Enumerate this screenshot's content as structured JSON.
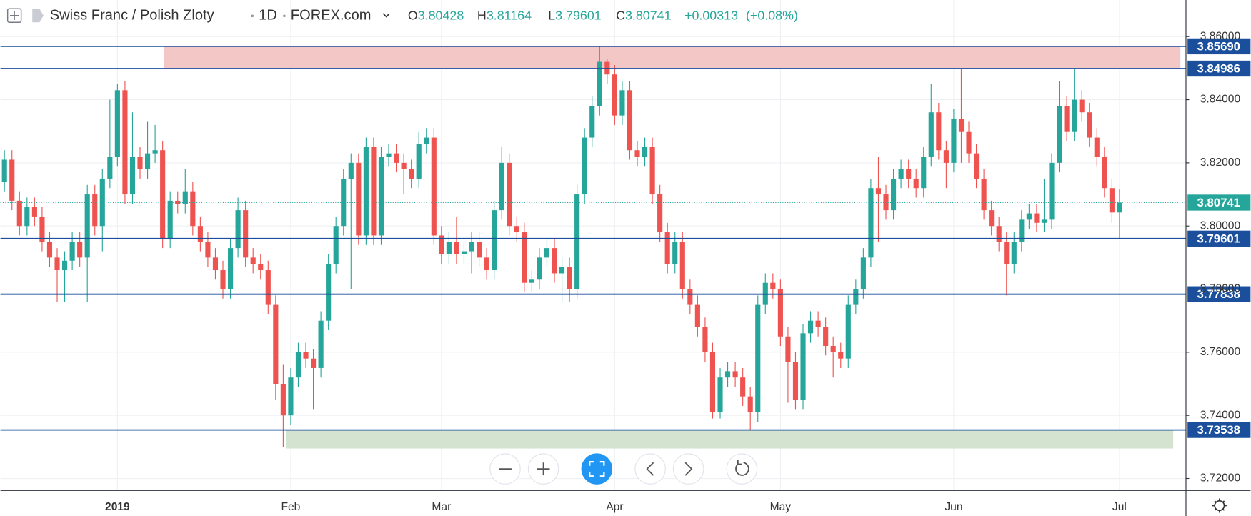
{
  "chart_data": {
    "type": "candlestick",
    "header": {
      "symbol": "Swiss Franc / Polish Zloty",
      "interval": "1D",
      "source": "FOREX.com",
      "o_label": "O",
      "h_label": "H",
      "l_label": "L",
      "c_label": "C",
      "change": {
        "value": 0.00313,
        "label": "+0.00313"
      },
      "change_pct": {
        "value": 0.08,
        "label": "(+0.08%)"
      }
    },
    "up_color": "#26a69a",
    "down_color": "#ef5350",
    "categories": [
      null,
      null,
      null,
      null,
      null,
      null,
      null,
      null,
      null,
      null,
      null,
      null,
      null,
      null,
      null,
      "2019",
      null,
      null,
      null,
      null,
      null,
      null,
      null,
      null,
      null,
      null,
      null,
      null,
      null,
      null,
      null,
      null,
      null,
      null,
      null,
      null,
      null,
      null,
      "Feb",
      null,
      null,
      null,
      null,
      null,
      null,
      null,
      null,
      null,
      null,
      null,
      null,
      null,
      null,
      null,
      null,
      null,
      null,
      null,
      "Mar",
      null,
      null,
      null,
      null,
      null,
      null,
      null,
      null,
      null,
      null,
      null,
      null,
      null,
      null,
      null,
      null,
      null,
      null,
      null,
      null,
      null,
      null,
      "Apr",
      null,
      null,
      null,
      null,
      null,
      null,
      null,
      null,
      null,
      null,
      null,
      null,
      null,
      null,
      null,
      null,
      null,
      null,
      null,
      null,
      null,
      "May",
      null,
      null,
      null,
      null,
      null,
      null,
      null,
      null,
      null,
      null,
      null,
      null,
      null,
      null,
      null,
      null,
      null,
      null,
      null,
      null,
      null,
      null,
      "Jun",
      null,
      null,
      null,
      null,
      null,
      null,
      null,
      null,
      null,
      null,
      null,
      null,
      null,
      null,
      null,
      null,
      null,
      null,
      null,
      null,
      null,
      "Jul"
    ],
    "open": [
      3.814,
      3.821,
      3.808,
      3.8,
      3.806,
      3.803,
      3.795,
      3.79,
      3.786,
      3.789,
      3.795,
      3.79,
      3.81,
      3.8,
      3.815,
      3.822,
      3.843,
      3.81,
      3.822,
      3.818,
      3.823,
      3.824,
      3.796,
      3.808,
      3.807,
      3.811,
      3.8,
      3.795,
      3.79,
      3.786,
      3.78,
      3.793,
      3.805,
      3.79,
      3.788,
      3.786,
      3.775,
      3.75,
      3.74,
      3.752,
      3.76,
      3.758,
      3.755,
      3.77,
      3.788,
      3.8,
      3.815,
      3.82,
      3.797,
      3.825,
      3.797,
      3.822,
      3.823,
      3.82,
      3.818,
      3.815,
      3.826,
      3.828,
      3.797,
      3.791,
      3.795,
      3.791,
      3.792,
      3.795,
      3.79,
      3.786,
      3.805,
      3.82,
      3.8,
      3.798,
      3.782,
      3.783,
      3.79,
      3.793,
      3.785,
      3.787,
      3.78,
      3.81,
      3.828,
      3.838,
      3.852,
      3.848,
      3.835,
      3.843,
      3.824,
      3.822,
      3.825,
      3.81,
      3.798,
      3.788,
      3.795,
      3.78,
      3.775,
      3.768,
      3.76,
      3.741,
      3.752,
      3.754,
      3.752,
      3.746,
      3.741,
      3.775,
      3.782,
      3.78,
      3.765,
      3.757,
      3.745,
      3.766,
      3.77,
      3.768,
      3.762,
      3.76,
      3.758,
      3.775,
      3.78,
      3.79,
      3.812,
      3.81,
      3.805,
      3.815,
      3.818,
      3.815,
      3.812,
      3.822,
      3.836,
      3.824,
      3.82,
      3.834,
      3.83,
      3.823,
      3.815,
      3.805,
      3.8,
      3.795,
      3.788,
      3.795,
      3.802,
      3.804,
      3.801,
      3.802,
      3.82,
      3.838,
      3.83,
      3.84,
      3.836,
      3.828,
      3.822,
      3.812,
      3.80428
    ],
    "high": [
      3.824,
      3.824,
      3.811,
      3.809,
      3.809,
      3.806,
      3.798,
      3.793,
      3.792,
      3.798,
      3.798,
      3.813,
      3.813,
      3.818,
      3.84,
      3.845,
      3.846,
      3.836,
      3.825,
      3.833,
      3.832,
      3.827,
      3.811,
      3.811,
      3.818,
      3.814,
      3.803,
      3.798,
      3.793,
      3.789,
      3.796,
      3.809,
      3.808,
      3.793,
      3.791,
      3.789,
      3.778,
      3.756,
      3.755,
      3.763,
      3.763,
      3.761,
      3.773,
      3.791,
      3.803,
      3.818,
      3.823,
      3.823,
      3.828,
      3.828,
      3.825,
      3.826,
      3.826,
      3.823,
      3.821,
      3.83,
      3.831,
      3.831,
      3.8,
      3.798,
      3.803,
      3.795,
      3.798,
      3.798,
      3.793,
      3.808,
      3.825,
      3.823,
      3.803,
      3.801,
      3.786,
      3.793,
      3.796,
      3.796,
      3.79,
      3.79,
      3.813,
      3.831,
      3.841,
      3.8569,
      3.853,
      3.851,
      3.846,
      3.846,
      3.827,
      3.828,
      3.828,
      3.813,
      3.801,
      3.798,
      3.798,
      3.783,
      3.778,
      3.771,
      3.763,
      3.755,
      3.757,
      3.757,
      3.755,
      3.749,
      3.778,
      3.785,
      3.785,
      3.783,
      3.768,
      3.76,
      3.769,
      3.773,
      3.773,
      3.771,
      3.765,
      3.763,
      3.778,
      3.783,
      3.793,
      3.815,
      3.822,
      3.813,
      3.818,
      3.821,
      3.821,
      3.818,
      3.825,
      3.845,
      3.839,
      3.827,
      3.837,
      3.8499,
      3.833,
      3.826,
      3.818,
      3.808,
      3.803,
      3.798,
      3.798,
      3.805,
      3.807,
      3.807,
      3.815,
      3.823,
      3.846,
      3.841,
      3.8499,
      3.843,
      3.839,
      3.831,
      3.825,
      3.815,
      3.81164
    ],
    "low": [
      3.811,
      3.805,
      3.797,
      3.797,
      3.8,
      3.792,
      3.787,
      3.776,
      3.776,
      3.786,
      3.787,
      3.776,
      3.797,
      3.792,
      3.812,
      3.819,
      3.807,
      3.807,
      3.815,
      3.815,
      3.82,
      3.793,
      3.793,
      3.804,
      3.804,
      3.797,
      3.792,
      3.787,
      3.783,
      3.777,
      3.777,
      3.79,
      3.787,
      3.785,
      3.783,
      3.772,
      3.745,
      3.73,
      3.737,
      3.749,
      3.755,
      3.742,
      3.752,
      3.767,
      3.785,
      3.797,
      3.78,
      3.794,
      3.794,
      3.794,
      3.794,
      3.819,
      3.817,
      3.81,
      3.812,
      3.812,
      3.823,
      3.794,
      3.788,
      3.788,
      3.788,
      3.788,
      3.785,
      3.787,
      3.783,
      3.783,
      3.802,
      3.797,
      3.795,
      3.779,
      3.779,
      3.78,
      3.787,
      3.782,
      3.776,
      3.776,
      3.777,
      3.807,
      3.825,
      3.835,
      3.845,
      3.832,
      3.832,
      3.821,
      3.819,
      3.819,
      3.807,
      3.795,
      3.785,
      3.785,
      3.777,
      3.772,
      3.765,
      3.757,
      3.739,
      3.739,
      3.749,
      3.749,
      3.743,
      3.7354,
      3.738,
      3.772,
      3.777,
      3.762,
      3.744,
      3.742,
      3.742,
      3.763,
      3.765,
      3.759,
      3.752,
      3.755,
      3.755,
      3.772,
      3.777,
      3.787,
      3.795,
      3.802,
      3.802,
      3.812,
      3.812,
      3.809,
      3.809,
      3.819,
      3.821,
      3.812,
      3.817,
      3.82,
      3.82,
      3.812,
      3.802,
      3.797,
      3.792,
      3.778,
      3.785,
      3.792,
      3.799,
      3.798,
      3.798,
      3.799,
      3.817,
      3.827,
      3.827,
      3.833,
      3.825,
      3.819,
      3.809,
      3.801,
      3.79601
    ],
    "close": [
      3.821,
      3.808,
      3.8,
      3.806,
      3.803,
      3.795,
      3.79,
      3.786,
      3.789,
      3.795,
      3.79,
      3.81,
      3.8,
      3.815,
      3.822,
      3.843,
      3.81,
      3.822,
      3.818,
      3.823,
      3.824,
      3.796,
      3.808,
      3.807,
      3.811,
      3.8,
      3.795,
      3.79,
      3.786,
      3.78,
      3.793,
      3.805,
      3.79,
      3.788,
      3.786,
      3.775,
      3.75,
      3.74,
      3.752,
      3.76,
      3.758,
      3.755,
      3.77,
      3.788,
      3.8,
      3.815,
      3.82,
      3.797,
      3.825,
      3.797,
      3.822,
      3.823,
      3.82,
      3.818,
      3.815,
      3.826,
      3.828,
      3.797,
      3.791,
      3.795,
      3.791,
      3.792,
      3.795,
      3.79,
      3.786,
      3.805,
      3.82,
      3.8,
      3.798,
      3.782,
      3.783,
      3.79,
      3.793,
      3.785,
      3.787,
      3.78,
      3.81,
      3.828,
      3.838,
      3.852,
      3.848,
      3.835,
      3.843,
      3.824,
      3.822,
      3.825,
      3.81,
      3.798,
      3.788,
      3.795,
      3.78,
      3.775,
      3.768,
      3.76,
      3.741,
      3.752,
      3.754,
      3.752,
      3.746,
      3.741,
      3.775,
      3.782,
      3.78,
      3.765,
      3.757,
      3.745,
      3.766,
      3.77,
      3.768,
      3.762,
      3.76,
      3.758,
      3.775,
      3.78,
      3.79,
      3.812,
      3.81,
      3.805,
      3.815,
      3.818,
      3.815,
      3.812,
      3.822,
      3.836,
      3.824,
      3.82,
      3.834,
      3.83,
      3.823,
      3.815,
      3.805,
      3.8,
      3.795,
      3.788,
      3.795,
      3.802,
      3.804,
      3.801,
      3.802,
      3.82,
      3.838,
      3.83,
      3.84,
      3.836,
      3.828,
      3.822,
      3.812,
      3.80428,
      3.80741
    ],
    "ylim": [
      3.7162,
      3.8716
    ],
    "yticks": [
      {
        "value": 3.72,
        "label": "3.72000"
      },
      {
        "value": 3.74,
        "label": "3.74000"
      },
      {
        "value": 3.76,
        "label": "3.76000"
      },
      {
        "value": 3.78,
        "label": "3.78000"
      },
      {
        "value": 3.8,
        "label": "3.80000"
      },
      {
        "value": 3.82,
        "label": "3.82000"
      },
      {
        "value": 3.84,
        "label": "3.84000"
      },
      {
        "value": 3.86,
        "label": "3.86000"
      }
    ],
    "grid": true,
    "levels": [
      {
        "value": 3.8569,
        "label": "3.85690"
      },
      {
        "value": 3.84986,
        "label": "3.84986"
      },
      {
        "value": 3.79601,
        "label": "3.79601"
      },
      {
        "value": 3.77838,
        "label": "3.77838"
      },
      {
        "value": 3.73538,
        "label": "3.73538"
      }
    ],
    "level_color": "#1b4f9c",
    "zones": [
      {
        "low": 3.84986,
        "high": 3.8569,
        "color": "#f4c7c7"
      },
      {
        "low": 3.7295,
        "high": 3.73538,
        "color": "#d3e3cf"
      }
    ]
  }
}
